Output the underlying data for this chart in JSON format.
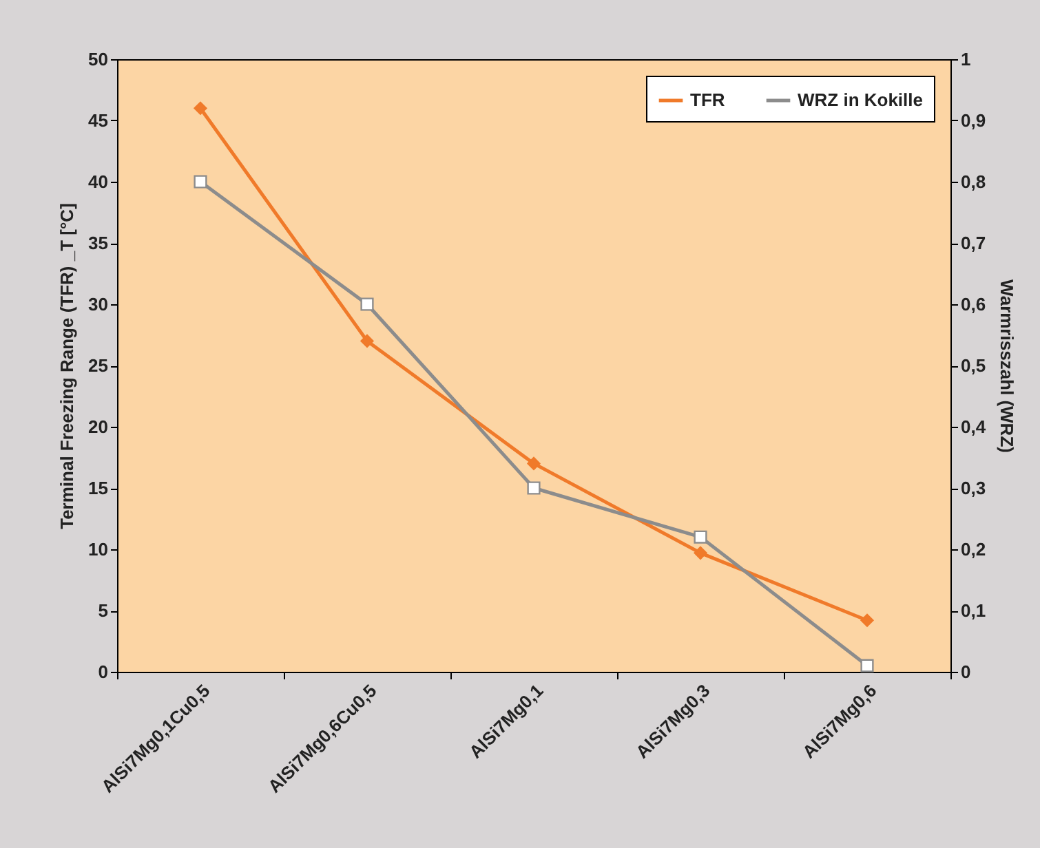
{
  "chart_data": {
    "type": "line",
    "ylabel": "Terminal Freezing Range (TFR) _T [°C]",
    "y2label": "Warmrisszahl (WRZ)",
    "categories": [
      "AlSi7Mg0,1Cu0,5",
      "AlSi7Mg0,6Cu0,5",
      "AlSi7Mg0,1",
      "AlSi7Mg0,3",
      "AlSi7Mg0,6"
    ],
    "series": [
      {
        "name": "TFR",
        "color": "#f07a2a",
        "values": [
          46,
          27,
          17,
          9.7,
          4.2
        ],
        "marker": "diamond"
      },
      {
        "name": "WRZ in Kokille",
        "color": "#8c8c8c",
        "values": [
          0.8,
          0.6,
          0.3,
          0.22,
          0.01
        ],
        "axis": "y2",
        "marker": "square"
      }
    ],
    "ylim": [
      0,
      50
    ],
    "yticks": [
      0,
      5,
      10,
      15,
      20,
      25,
      30,
      35,
      40,
      45,
      50
    ],
    "y2lim": [
      0,
      1
    ],
    "y2ticks": [
      0,
      {
        "value": 0.1,
        "label": "0,1"
      },
      {
        "value": 0.2,
        "label": "0,2"
      },
      {
        "value": 0.3,
        "label": "0,3"
      },
      {
        "value": 0.4,
        "label": "0,4"
      },
      {
        "value": 0.5,
        "label": "0,5"
      },
      {
        "value": 0.6,
        "label": "0,6"
      },
      {
        "value": 0.7,
        "label": "0,7"
      },
      {
        "value": 0.8,
        "label": "0,8"
      },
      {
        "value": 0.9,
        "label": "0,9"
      },
      1
    ],
    "legend": "top right"
  }
}
